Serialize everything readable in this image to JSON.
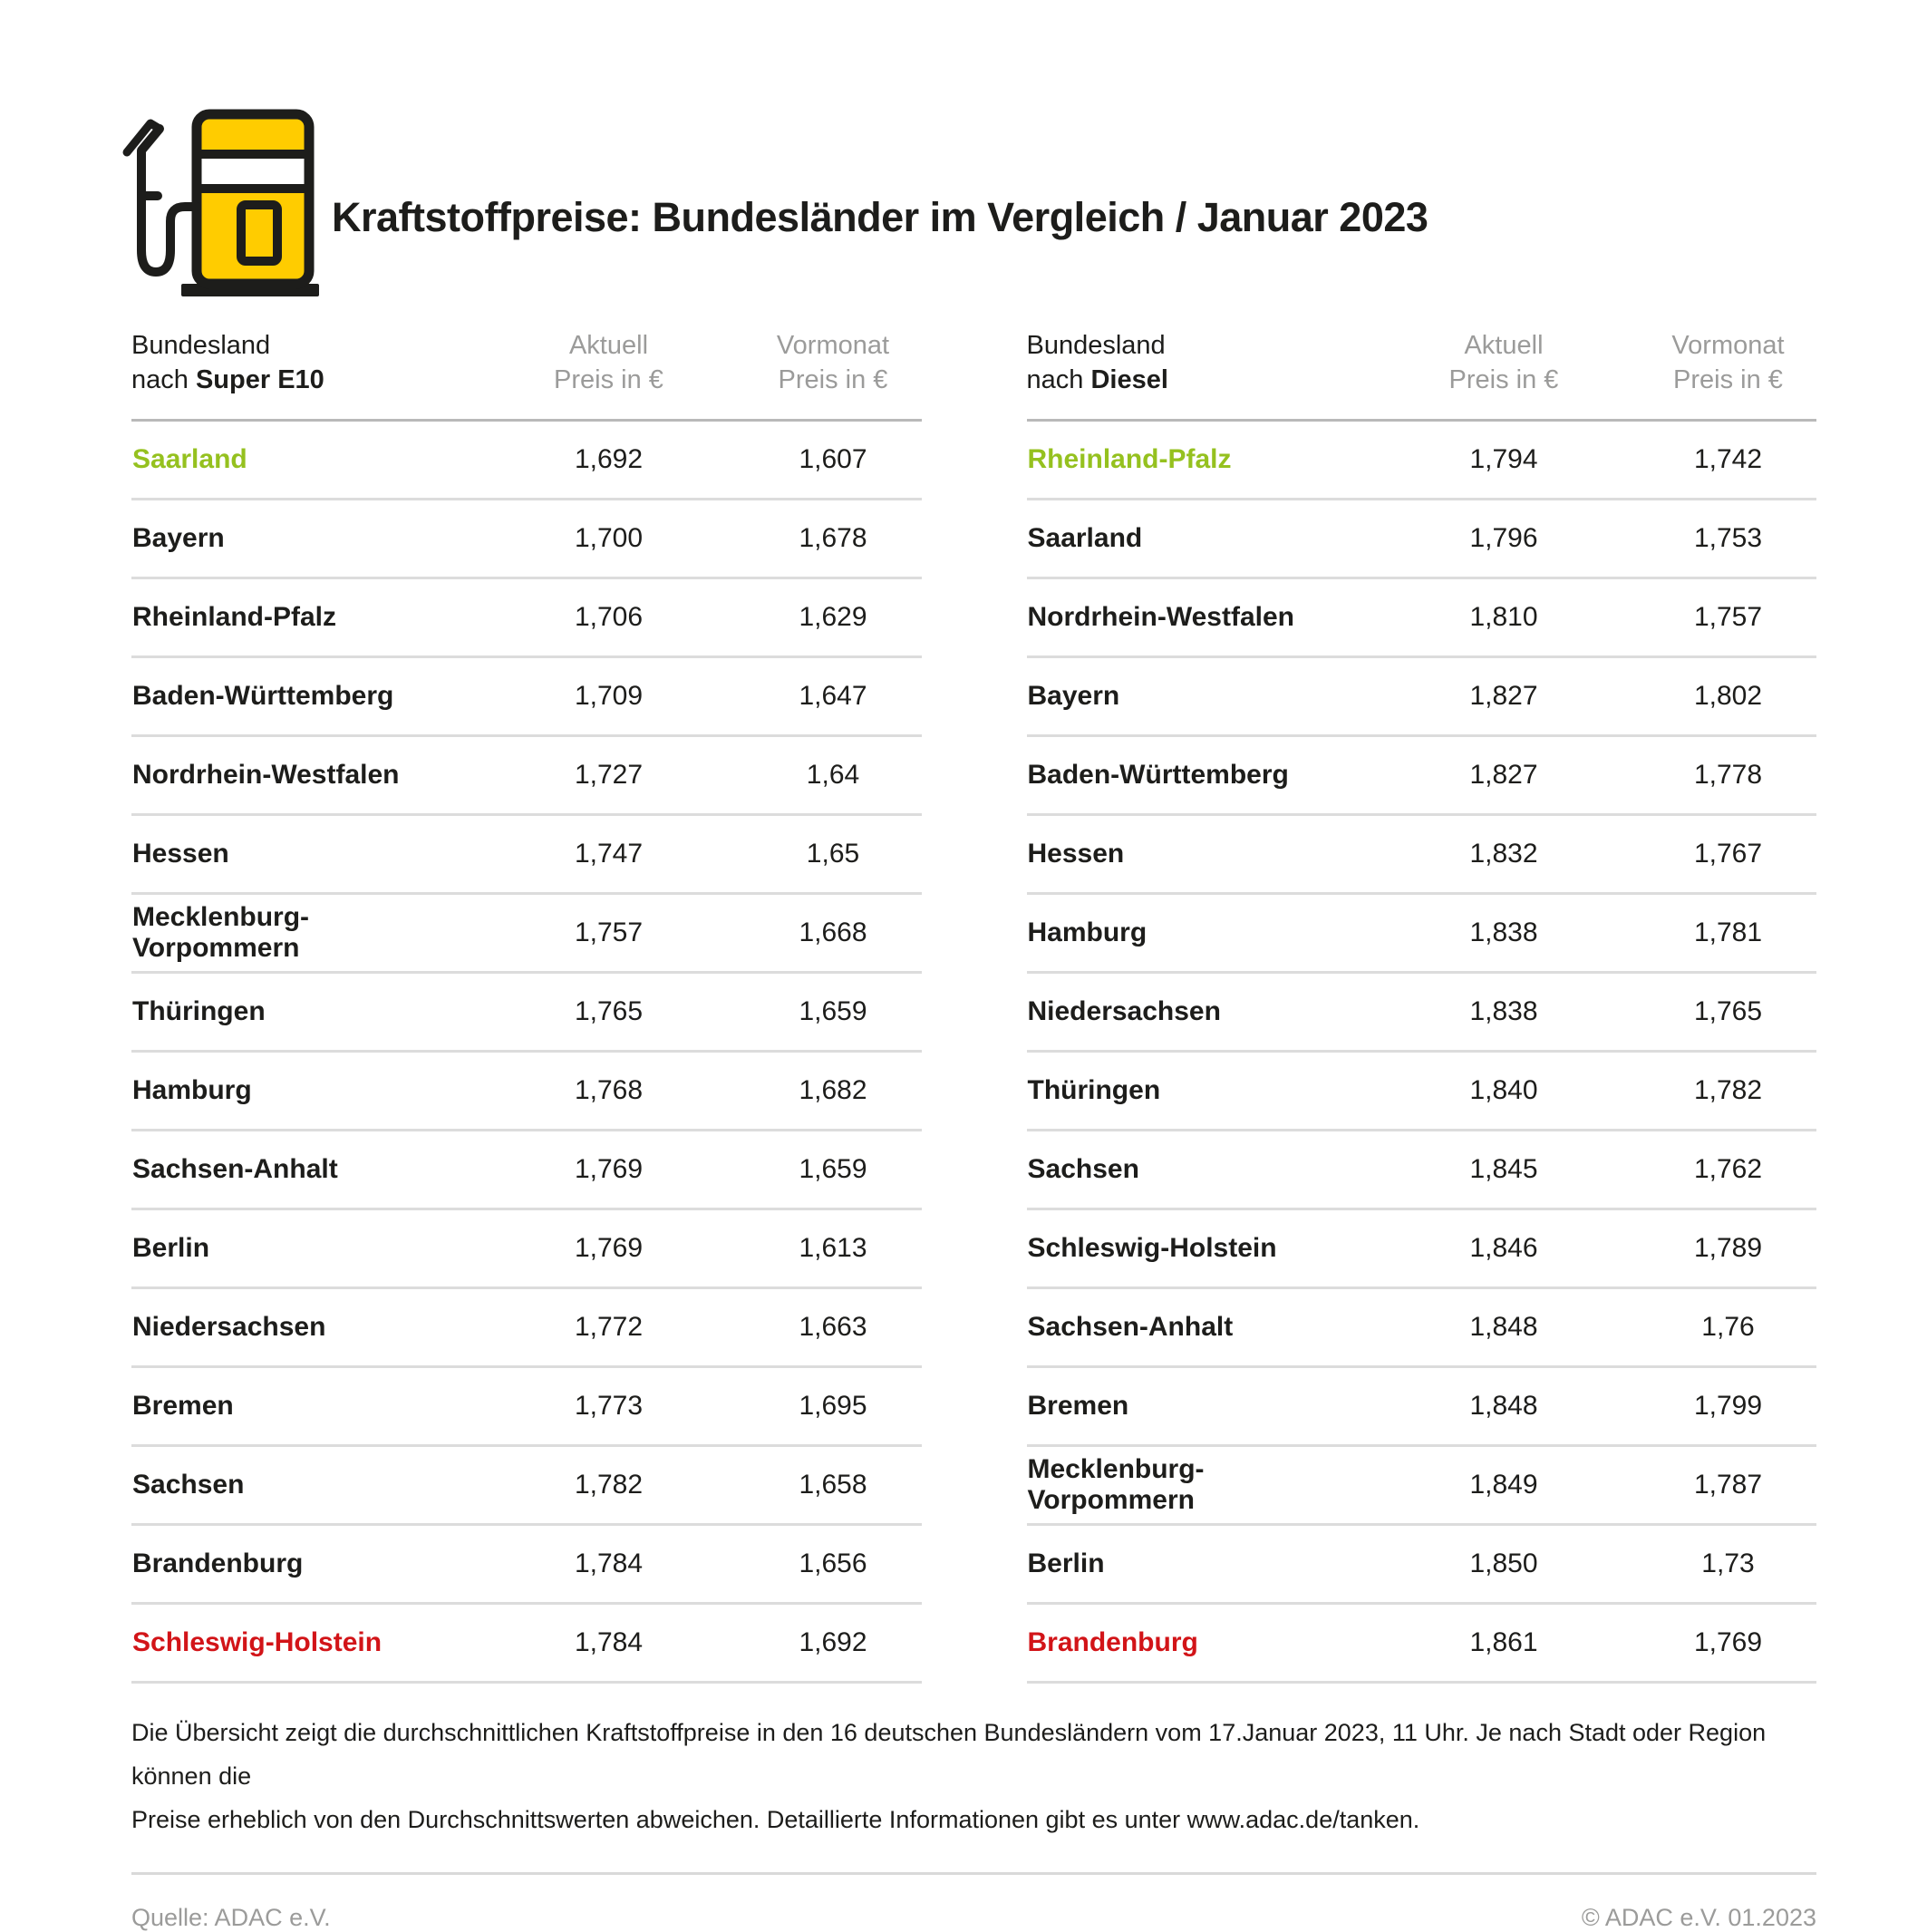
{
  "title": "Kraftstoffpreise: Bundesländer im Vergleich / Januar 2023",
  "colors": {
    "accent_green": "#95c11f",
    "accent_red": "#d21418",
    "brand_yellow": "#ffcc00",
    "text_black": "#1d1d1b",
    "muted_gray": "#9b9b9a"
  },
  "tables": [
    {
      "header": {
        "line1": "Bundesland",
        "prefix": "nach ",
        "fuel": "Super E10"
      },
      "col_aktuell_line1": "Aktuell",
      "col_aktuell_line2": "Preis in €",
      "col_vormonat_line1": "Vormonat",
      "col_vormonat_line2": "Preis in €",
      "rows": [
        {
          "name": "Saarland",
          "aktuell": "1,692",
          "vormonat": "1,607",
          "highlight": "green"
        },
        {
          "name": "Bayern",
          "aktuell": "1,700",
          "vormonat": "1,678"
        },
        {
          "name": "Rheinland-Pfalz",
          "aktuell": "1,706",
          "vormonat": "1,629"
        },
        {
          "name": "Baden-Württemberg",
          "aktuell": "1,709",
          "vormonat": "1,647"
        },
        {
          "name": "Nordrhein-Westfalen",
          "aktuell": "1,727",
          "vormonat": "1,64"
        },
        {
          "name": "Hessen",
          "aktuell": "1,747",
          "vormonat": "1,65"
        },
        {
          "name": "Mecklenburg-Vorpommern",
          "aktuell": "1,757",
          "vormonat": "1,668"
        },
        {
          "name": "Thüringen",
          "aktuell": "1,765",
          "vormonat": "1,659"
        },
        {
          "name": "Hamburg",
          "aktuell": "1,768",
          "vormonat": "1,682"
        },
        {
          "name": "Sachsen-Anhalt",
          "aktuell": "1,769",
          "vormonat": "1,659"
        },
        {
          "name": "Berlin",
          "aktuell": "1,769",
          "vormonat": "1,613"
        },
        {
          "name": "Niedersachsen",
          "aktuell": "1,772",
          "vormonat": "1,663"
        },
        {
          "name": "Bremen",
          "aktuell": "1,773",
          "vormonat": "1,695"
        },
        {
          "name": "Sachsen",
          "aktuell": "1,782",
          "vormonat": "1,658"
        },
        {
          "name": "Brandenburg",
          "aktuell": "1,784",
          "vormonat": "1,656"
        },
        {
          "name": "Schleswig-Holstein",
          "aktuell": "1,784",
          "vormonat": "1,692",
          "highlight": "red"
        }
      ]
    },
    {
      "header": {
        "line1": "Bundesland",
        "prefix": "nach ",
        "fuel": "Diesel"
      },
      "col_aktuell_line1": "Aktuell",
      "col_aktuell_line2": "Preis in €",
      "col_vormonat_line1": "Vormonat",
      "col_vormonat_line2": "Preis in €",
      "rows": [
        {
          "name": "Rheinland-Pfalz",
          "aktuell": "1,794",
          "vormonat": "1,742",
          "highlight": "green"
        },
        {
          "name": "Saarland",
          "aktuell": "1,796",
          "vormonat": "1,753"
        },
        {
          "name": "Nordrhein-Westfalen",
          "aktuell": "1,810",
          "vormonat": "1,757"
        },
        {
          "name": "Bayern",
          "aktuell": "1,827",
          "vormonat": "1,802"
        },
        {
          "name": "Baden-Württemberg",
          "aktuell": "1,827",
          "vormonat": "1,778"
        },
        {
          "name": "Hessen",
          "aktuell": "1,832",
          "vormonat": "1,767"
        },
        {
          "name": "Hamburg",
          "aktuell": "1,838",
          "vormonat": "1,781"
        },
        {
          "name": "Niedersachsen",
          "aktuell": "1,838",
          "vormonat": "1,765"
        },
        {
          "name": "Thüringen",
          "aktuell": "1,840",
          "vormonat": "1,782"
        },
        {
          "name": "Sachsen",
          "aktuell": "1,845",
          "vormonat": "1,762"
        },
        {
          "name": "Schleswig-Holstein",
          "aktuell": "1,846",
          "vormonat": "1,789"
        },
        {
          "name": "Sachsen-Anhalt",
          "aktuell": "1,848",
          "vormonat": "1,76"
        },
        {
          "name": "Bremen",
          "aktuell": "1,848",
          "vormonat": "1,799"
        },
        {
          "name": "Mecklenburg-Vorpommern",
          "aktuell": "1,849",
          "vormonat": "1,787"
        },
        {
          "name": "Berlin",
          "aktuell": "1,850",
          "vormonat": "1,73"
        },
        {
          "name": "Brandenburg",
          "aktuell": "1,861",
          "vormonat": "1,769",
          "highlight": "red"
        }
      ]
    }
  ],
  "footnote": {
    "line1": "Die Übersicht zeigt die durchschnittlichen Kraftstoffpreise in den 16 deutschen Bundesländern vom 17.Januar 2023, 11 Uhr. Je nach Stadt oder Region können die",
    "line2": "Preise erheblich von den Durchschnittswerten abweichen. Detaillierte Informationen gibt es unter www.adac.de/tanken."
  },
  "footer": {
    "source": "Quelle: ADAC e.V.",
    "copyright": "© ADAC e.V. 01.2023"
  },
  "chart_data": {
    "type": "table",
    "title": "Kraftstoffpreise: Bundesländer im Vergleich / Januar 2023",
    "tables": [
      {
        "name": "Super E10",
        "columns": [
          "Bundesland nach Super E10",
          "Aktuell Preis in €",
          "Vormonat Preis in €"
        ],
        "rows": [
          [
            "Saarland",
            1.692,
            1.607
          ],
          [
            "Bayern",
            1.7,
            1.678
          ],
          [
            "Rheinland-Pfalz",
            1.706,
            1.629
          ],
          [
            "Baden-Württemberg",
            1.709,
            1.647
          ],
          [
            "Nordrhein-Westfalen",
            1.727,
            1.64
          ],
          [
            "Hessen",
            1.747,
            1.65
          ],
          [
            "Mecklenburg-Vorpommern",
            1.757,
            1.668
          ],
          [
            "Thüringen",
            1.765,
            1.659
          ],
          [
            "Hamburg",
            1.768,
            1.682
          ],
          [
            "Sachsen-Anhalt",
            1.769,
            1.659
          ],
          [
            "Berlin",
            1.769,
            1.613
          ],
          [
            "Niedersachsen",
            1.772,
            1.663
          ],
          [
            "Bremen",
            1.773,
            1.695
          ],
          [
            "Sachsen",
            1.782,
            1.658
          ],
          [
            "Brandenburg",
            1.784,
            1.656
          ],
          [
            "Schleswig-Holstein",
            1.784,
            1.692
          ]
        ],
        "cheapest_highlighted_green": "Saarland",
        "most_expensive_highlighted_red": "Schleswig-Holstein"
      },
      {
        "name": "Diesel",
        "columns": [
          "Bundesland nach Diesel",
          "Aktuell Preis in €",
          "Vormonat Preis in €"
        ],
        "rows": [
          [
            "Rheinland-Pfalz",
            1.794,
            1.742
          ],
          [
            "Saarland",
            1.796,
            1.753
          ],
          [
            "Nordrhein-Westfalen",
            1.81,
            1.757
          ],
          [
            "Bayern",
            1.827,
            1.802
          ],
          [
            "Baden-Württemberg",
            1.827,
            1.778
          ],
          [
            "Hessen",
            1.832,
            1.767
          ],
          [
            "Hamburg",
            1.838,
            1.781
          ],
          [
            "Niedersachsen",
            1.838,
            1.765
          ],
          [
            "Thüringen",
            1.84,
            1.782
          ],
          [
            "Sachsen",
            1.845,
            1.762
          ],
          [
            "Schleswig-Holstein",
            1.846,
            1.789
          ],
          [
            "Sachsen-Anhalt",
            1.848,
            1.76
          ],
          [
            "Bremen",
            1.848,
            1.799
          ],
          [
            "Mecklenburg-Vorpommern",
            1.849,
            1.787
          ],
          [
            "Berlin",
            1.85,
            1.73
          ],
          [
            "Brandenburg",
            1.861,
            1.769
          ]
        ],
        "cheapest_highlighted_green": "Rheinland-Pfalz",
        "most_expensive_highlighted_red": "Brandenburg"
      }
    ]
  }
}
